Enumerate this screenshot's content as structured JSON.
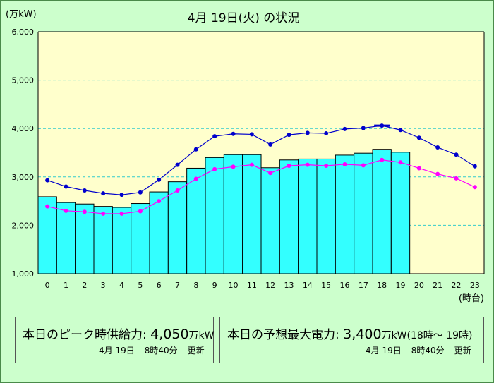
{
  "chart_data": {
    "type": "bar",
    "title": "4月 19日(火) の状況",
    "ylabel": "(万kW)",
    "xlabel": "(時台)",
    "ylim": [
      1000,
      6000
    ],
    "yticks": [
      "1,000",
      "2,000",
      "3,000",
      "4,000",
      "5,000",
      "6,000"
    ],
    "categories": [
      "0",
      "1",
      "2",
      "3",
      "4",
      "5",
      "6",
      "7",
      "8",
      "9",
      "10",
      "11",
      "12",
      "13",
      "14",
      "15",
      "16",
      "17",
      "18",
      "19",
      "20",
      "21",
      "22",
      "23"
    ],
    "series": [
      {
        "kind": "bar",
        "color": "#33ffff",
        "values": [
          2590,
          2470,
          2440,
          2390,
          2370,
          2450,
          2690,
          2900,
          3180,
          3400,
          3460,
          3460,
          3190,
          3350,
          3370,
          3370,
          3450,
          3490,
          3570,
          3510,
          null,
          null,
          null,
          null
        ]
      },
      {
        "kind": "line",
        "color": "#0000cc",
        "values": [
          2930,
          2800,
          2720,
          2660,
          2630,
          2680,
          2940,
          3250,
          3570,
          3840,
          3890,
          3880,
          3670,
          3870,
          3910,
          3900,
          3990,
          4010,
          4060,
          3970,
          3810,
          3610,
          3460,
          3220
        ]
      },
      {
        "kind": "line",
        "color": "#ff00ff",
        "values": [
          2390,
          2300,
          2280,
          2240,
          2240,
          2290,
          2500,
          2720,
          2960,
          3160,
          3210,
          3250,
          3080,
          3230,
          3250,
          3230,
          3260,
          3240,
          3350,
          3300,
          3180,
          3060,
          2970,
          2790
        ]
      }
    ],
    "grid": true
  },
  "peak_supply": {
    "label": "本日のピーク時供給力:",
    "value": "4,050",
    "unit": "万kW",
    "date": "4月 19日",
    "time": "8時40分",
    "status": "更新"
  },
  "forecast": {
    "label": "本日の予想最大電力:",
    "value": "3,400",
    "unit": "万kW",
    "range": "(18時～ 19時)",
    "date": "4月 19日",
    "time": "8時40分",
    "status": "更新"
  },
  "colors": {
    "page_bg": "#ccffcc",
    "plot_bg": "#ffffcc",
    "bar": "#33ffff",
    "supply_line": "#0000cc",
    "forecast_line": "#ff00ff",
    "grid": "#33cccc"
  }
}
